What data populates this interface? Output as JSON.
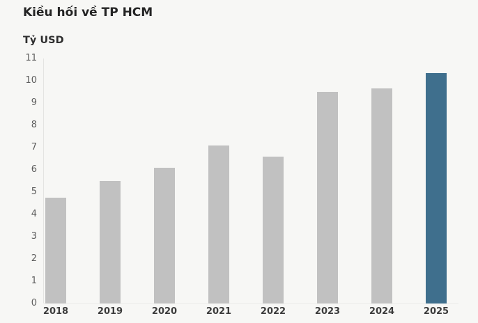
{
  "title": "Kiều hối về TP HCM",
  "colors": {
    "background": "#f7f7f5",
    "bar_default": "#c1c1c1",
    "bar_highlight": "#3f6f8d",
    "title_text": "#242424",
    "y_tick_text": "#5c5c5c",
    "x_tick_text": "#3c3c3c",
    "axis_line": "#e4e4e2"
  },
  "chart_data": {
    "type": "bar",
    "title": "Kiều hối về TP HCM",
    "ylabel": "Tỷ USD",
    "xlabel": "",
    "categories": [
      "2018",
      "2019",
      "2020",
      "2021",
      "2022",
      "2023",
      "2024",
      "2025"
    ],
    "values": [
      4.75,
      5.5,
      6.1,
      7.1,
      6.6,
      9.5,
      9.65,
      10.35
    ],
    "highlighted_category": "2025",
    "ylim": [
      0,
      11
    ],
    "y_ticks": [
      0,
      1,
      2,
      3,
      4,
      5,
      6,
      7,
      8,
      9,
      10,
      11
    ],
    "grid": false,
    "legend_position": "none"
  }
}
